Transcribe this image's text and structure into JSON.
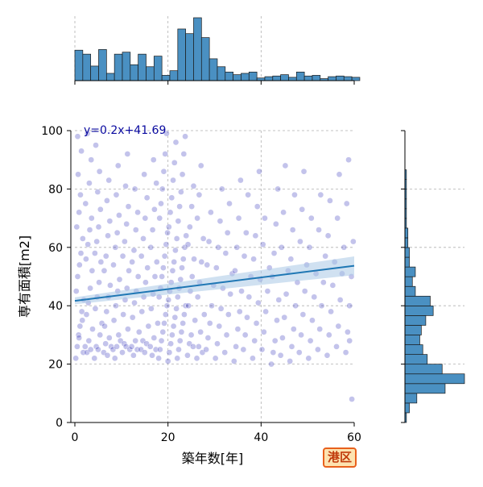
{
  "chart_data": {
    "type": "scatter",
    "xlabel": "築年数[年]",
    "ylabel": "専有面積[m2]",
    "xlim": [
      0,
      60
    ],
    "ylim": [
      0,
      100
    ],
    "x_ticks": [
      "0",
      "20",
      "40",
      "60"
    ],
    "y_ticks": [
      "0",
      "20",
      "40",
      "60",
      "80",
      "100"
    ],
    "grid": true,
    "regression": {
      "label": "y=0.2x+41.69",
      "slope": 0.2,
      "intercept": 41.69,
      "x_range": [
        0,
        60
      ]
    },
    "badge": "港区",
    "colors": {
      "points": "#2727b8",
      "line": "#1f77b4",
      "band": "#a9c8e6",
      "hist": "#4a90c2"
    },
    "top_histogram": {
      "bin_width": 1.7,
      "start": 0,
      "counts": [
        46,
        40,
        22,
        47,
        11,
        40,
        43,
        24,
        40,
        21,
        37,
        8,
        15,
        78,
        71,
        95,
        65,
        33,
        21,
        13,
        9,
        11,
        13,
        4,
        6,
        7,
        9,
        5,
        13,
        7,
        8,
        3,
        6,
        7,
        6,
        5
      ]
    },
    "right_histogram": {
      "bin_width": 3.33,
      "start": 0,
      "counts": [
        1,
        3,
        8,
        27,
        40,
        25,
        15,
        12,
        10,
        11,
        14,
        19,
        17,
        7,
        5,
        7,
        3,
        3,
        2,
        2,
        1,
        1,
        1,
        1,
        1,
        1
      ]
    },
    "points": [
      [
        0.2,
        22
      ],
      [
        0.5,
        26
      ],
      [
        0.8,
        30
      ],
      [
        1.1,
        33
      ],
      [
        1.5,
        38
      ],
      [
        1.9,
        42
      ],
      [
        0.3,
        45
      ],
      [
        0.6,
        50
      ],
      [
        1.0,
        54
      ],
      [
        1.3,
        58
      ],
      [
        1.7,
        63
      ],
      [
        0.4,
        67
      ],
      [
        0.9,
        72
      ],
      [
        1.2,
        78
      ],
      [
        0.7,
        85
      ],
      [
        1.4,
        93
      ],
      [
        0.6,
        98
      ],
      [
        1.8,
        24
      ],
      [
        0.9,
        29
      ],
      [
        1.6,
        35
      ],
      [
        2.2,
        26
      ],
      [
        2.6,
        24
      ],
      [
        3.0,
        28
      ],
      [
        3.4,
        25
      ],
      [
        3.8,
        32
      ],
      [
        2.5,
        37
      ],
      [
        2.9,
        41
      ],
      [
        3.3,
        46
      ],
      [
        3.7,
        52
      ],
      [
        2.4,
        56
      ],
      [
        2.8,
        61
      ],
      [
        3.2,
        66
      ],
      [
        3.6,
        70
      ],
      [
        2.3,
        75
      ],
      [
        3.1,
        82
      ],
      [
        3.5,
        90
      ],
      [
        2.7,
        99
      ],
      [
        4.2,
        22
      ],
      [
        4.6,
        26
      ],
      [
        5.0,
        25
      ],
      [
        5.4,
        30
      ],
      [
        5.8,
        34
      ],
      [
        4.4,
        39
      ],
      [
        4.8,
        43
      ],
      [
        5.2,
        48
      ],
      [
        5.6,
        55
      ],
      [
        4.3,
        58
      ],
      [
        4.7,
        62
      ],
      [
        5.1,
        67
      ],
      [
        5.5,
        73
      ],
      [
        4.9,
        79
      ],
      [
        5.3,
        86
      ],
      [
        4.5,
        95
      ],
      [
        6.2,
        24
      ],
      [
        6.6,
        27
      ],
      [
        7.0,
        23
      ],
      [
        7.4,
        29
      ],
      [
        7.8,
        26
      ],
      [
        6.4,
        33
      ],
      [
        6.8,
        38
      ],
      [
        7.2,
        43
      ],
      [
        7.6,
        47
      ],
      [
        6.3,
        52
      ],
      [
        6.7,
        57
      ],
      [
        7.1,
        64
      ],
      [
        7.5,
        69
      ],
      [
        6.9,
        76
      ],
      [
        7.3,
        83
      ],
      [
        8.2,
        25
      ],
      [
        8.6,
        22
      ],
      [
        9.0,
        26
      ],
      [
        9.4,
        30
      ],
      [
        9.8,
        28
      ],
      [
        8.4,
        35
      ],
      [
        8.8,
        40
      ],
      [
        9.2,
        45
      ],
      [
        9.6,
        49
      ],
      [
        8.3,
        54
      ],
      [
        8.7,
        60
      ],
      [
        9.1,
        65
      ],
      [
        9.5,
        71
      ],
      [
        8.9,
        78
      ],
      [
        9.3,
        88
      ],
      [
        10.2,
        24
      ],
      [
        10.6,
        27
      ],
      [
        11.0,
        26
      ],
      [
        11.4,
        32
      ],
      [
        11.8,
        25
      ],
      [
        10.4,
        37
      ],
      [
        10.8,
        42
      ],
      [
        11.2,
        46
      ],
      [
        11.6,
        52
      ],
      [
        10.3,
        57
      ],
      [
        10.7,
        62
      ],
      [
        11.1,
        68
      ],
      [
        11.5,
        74
      ],
      [
        10.9,
        81
      ],
      [
        11.3,
        92
      ],
      [
        12.2,
        26
      ],
      [
        12.6,
        23
      ],
      [
        13.0,
        28
      ],
      [
        13.4,
        25
      ],
      [
        13.8,
        31
      ],
      [
        12.4,
        36
      ],
      [
        12.8,
        41
      ],
      [
        13.2,
        45
      ],
      [
        13.6,
        50
      ],
      [
        12.3,
        55
      ],
      [
        12.7,
        59
      ],
      [
        13.1,
        66
      ],
      [
        13.5,
        72
      ],
      [
        12.9,
        80
      ],
      [
        14.2,
        25
      ],
      [
        14.6,
        28
      ],
      [
        15.0,
        24
      ],
      [
        15.4,
        27
      ],
      [
        15.8,
        33
      ],
      [
        14.4,
        38
      ],
      [
        14.8,
        43
      ],
      [
        15.2,
        48
      ],
      [
        15.6,
        53
      ],
      [
        14.3,
        57
      ],
      [
        14.7,
        63
      ],
      [
        15.1,
        70
      ],
      [
        15.5,
        77
      ],
      [
        14.9,
        85
      ],
      [
        16.2,
        26
      ],
      [
        16.6,
        23
      ],
      [
        17.0,
        29
      ],
      [
        17.4,
        25
      ],
      [
        17.8,
        34
      ],
      [
        16.4,
        39
      ],
      [
        16.8,
        44
      ],
      [
        17.2,
        50
      ],
      [
        17.6,
        55
      ],
      [
        16.3,
        60
      ],
      [
        16.7,
        66
      ],
      [
        17.1,
        73
      ],
      [
        17.5,
        82
      ],
      [
        16.9,
        90
      ],
      [
        18.0,
        22
      ],
      [
        18.3,
        25
      ],
      [
        18.6,
        28
      ],
      [
        18.9,
        31
      ],
      [
        19.2,
        34
      ],
      [
        19.5,
        37
      ],
      [
        19.8,
        40
      ],
      [
        18.1,
        43
      ],
      [
        18.4,
        46
      ],
      [
        18.7,
        50
      ],
      [
        19.0,
        53
      ],
      [
        19.3,
        57
      ],
      [
        19.6,
        61
      ],
      [
        19.9,
        65
      ],
      [
        18.2,
        70
      ],
      [
        18.5,
        75
      ],
      [
        18.8,
        80
      ],
      [
        19.1,
        86
      ],
      [
        19.4,
        92
      ],
      [
        19.7,
        99
      ],
      [
        20.0,
        21
      ],
      [
        20.3,
        24
      ],
      [
        20.6,
        27
      ],
      [
        20.9,
        30
      ],
      [
        21.2,
        33
      ],
      [
        21.5,
        36
      ],
      [
        21.8,
        39
      ],
      [
        20.1,
        42
      ],
      [
        20.4,
        45
      ],
      [
        20.7,
        48
      ],
      [
        21.0,
        52
      ],
      [
        21.3,
        55
      ],
      [
        21.6,
        59
      ],
      [
        21.9,
        63
      ],
      [
        20.2,
        67
      ],
      [
        20.5,
        72
      ],
      [
        20.8,
        77
      ],
      [
        21.1,
        83
      ],
      [
        21.4,
        89
      ],
      [
        21.7,
        96
      ],
      [
        22.0,
        22
      ],
      [
        22.3,
        25
      ],
      [
        22.6,
        28
      ],
      [
        22.9,
        31
      ],
      [
        23.2,
        34
      ],
      [
        23.5,
        37
      ],
      [
        23.8,
        40
      ],
      [
        22.1,
        43
      ],
      [
        22.4,
        46
      ],
      [
        22.7,
        49
      ],
      [
        23.0,
        53
      ],
      [
        23.3,
        56
      ],
      [
        23.6,
        60
      ],
      [
        23.9,
        64
      ],
      [
        22.2,
        69
      ],
      [
        22.5,
        74
      ],
      [
        22.8,
        79
      ],
      [
        23.1,
        85
      ],
      [
        23.4,
        92
      ],
      [
        23.7,
        98
      ],
      [
        24.2,
        23
      ],
      [
        24.6,
        27
      ],
      [
        25.0,
        30
      ],
      [
        25.4,
        26
      ],
      [
        25.8,
        35
      ],
      [
        24.4,
        40
      ],
      [
        24.8,
        45
      ],
      [
        25.2,
        50
      ],
      [
        25.6,
        56
      ],
      [
        24.3,
        61
      ],
      [
        24.7,
        67
      ],
      [
        25.1,
        74
      ],
      [
        25.5,
        81
      ],
      [
        26.2,
        22
      ],
      [
        26.6,
        26
      ],
      [
        27.0,
        31
      ],
      [
        27.4,
        24
      ],
      [
        27.8,
        37
      ],
      [
        26.4,
        43
      ],
      [
        26.8,
        48
      ],
      [
        27.2,
        55
      ],
      [
        27.6,
        63
      ],
      [
        26.3,
        70
      ],
      [
        26.7,
        78
      ],
      [
        27.1,
        88
      ],
      [
        28.2,
        25
      ],
      [
        28.6,
        29
      ],
      [
        29.0,
        34
      ],
      [
        29.4,
        40
      ],
      [
        29.8,
        47
      ],
      [
        28.4,
        54
      ],
      [
        28.8,
        62
      ],
      [
        29.2,
        72
      ],
      [
        30.2,
        22
      ],
      [
        30.6,
        27
      ],
      [
        31.0,
        33
      ],
      [
        31.4,
        39
      ],
      [
        31.8,
        46
      ],
      [
        30.4,
        53
      ],
      [
        30.8,
        60
      ],
      [
        31.2,
        69
      ],
      [
        31.6,
        80
      ],
      [
        32.2,
        24
      ],
      [
        32.6,
        30
      ],
      [
        33.0,
        37
      ],
      [
        33.4,
        44
      ],
      [
        33.8,
        51
      ],
      [
        32.4,
        58
      ],
      [
        32.8,
        65
      ],
      [
        33.2,
        75
      ],
      [
        34.2,
        21
      ],
      [
        34.6,
        26
      ],
      [
        35.0,
        32
      ],
      [
        35.4,
        38
      ],
      [
        35.8,
        45
      ],
      [
        34.4,
        52
      ],
      [
        34.8,
        60
      ],
      [
        35.2,
        70
      ],
      [
        35.6,
        83
      ],
      [
        36.2,
        25
      ],
      [
        36.6,
        30
      ],
      [
        37.0,
        36
      ],
      [
        37.4,
        43
      ],
      [
        37.8,
        50
      ],
      [
        36.4,
        57
      ],
      [
        36.8,
        65
      ],
      [
        37.2,
        78
      ],
      [
        38.2,
        22
      ],
      [
        38.6,
        28
      ],
      [
        39.0,
        34
      ],
      [
        39.4,
        41
      ],
      [
        39.8,
        49
      ],
      [
        38.4,
        56
      ],
      [
        38.8,
        64
      ],
      [
        39.2,
        74
      ],
      [
        39.6,
        86
      ],
      [
        40.2,
        25
      ],
      [
        40.6,
        31
      ],
      [
        41.0,
        38
      ],
      [
        41.4,
        45
      ],
      [
        41.8,
        53
      ],
      [
        40.4,
        61
      ],
      [
        40.8,
        70
      ],
      [
        42.2,
        20
      ],
      [
        42.6,
        24
      ],
      [
        43.0,
        28
      ],
      [
        43.4,
        35
      ],
      [
        43.8,
        42
      ],
      [
        42.4,
        50
      ],
      [
        42.8,
        58
      ],
      [
        43.2,
        68
      ],
      [
        43.6,
        80
      ],
      [
        44.2,
        23
      ],
      [
        44.6,
        29
      ],
      [
        45.0,
        36
      ],
      [
        45.4,
        44
      ],
      [
        45.8,
        52
      ],
      [
        44.4,
        60
      ],
      [
        44.8,
        72
      ],
      [
        45.2,
        88
      ],
      [
        46.2,
        21
      ],
      [
        46.6,
        26
      ],
      [
        47.0,
        32
      ],
      [
        47.4,
        40
      ],
      [
        47.8,
        48
      ],
      [
        46.4,
        56
      ],
      [
        46.8,
        66
      ],
      [
        47.2,
        78
      ],
      [
        48.2,
        24
      ],
      [
        48.6,
        30
      ],
      [
        49.0,
        37
      ],
      [
        49.4,
        45
      ],
      [
        49.8,
        54
      ],
      [
        48.4,
        62
      ],
      [
        48.8,
        73
      ],
      [
        49.2,
        86
      ],
      [
        50.2,
        22
      ],
      [
        50.6,
        28
      ],
      [
        51.0,
        35
      ],
      [
        51.4,
        43
      ],
      [
        51.8,
        51
      ],
      [
        50.4,
        60
      ],
      [
        50.8,
        70
      ],
      [
        52.2,
        25
      ],
      [
        52.6,
        32
      ],
      [
        53.0,
        40
      ],
      [
        53.4,
        48
      ],
      [
        53.8,
        57
      ],
      [
        52.4,
        66
      ],
      [
        52.8,
        78
      ],
      [
        54.2,
        23
      ],
      [
        54.6,
        30
      ],
      [
        55.0,
        38
      ],
      [
        55.4,
        47
      ],
      [
        55.8,
        55
      ],
      [
        54.4,
        64
      ],
      [
        54.8,
        76
      ],
      [
        56.2,
        26
      ],
      [
        56.6,
        33
      ],
      [
        57.0,
        42
      ],
      [
        57.4,
        51
      ],
      [
        57.8,
        60
      ],
      [
        56.4,
        70
      ],
      [
        56.8,
        85
      ],
      [
        58.2,
        24
      ],
      [
        58.6,
        31
      ],
      [
        59.0,
        40
      ],
      [
        59.4,
        50
      ],
      [
        59.8,
        62
      ],
      [
        58.4,
        75
      ],
      [
        58.8,
        90
      ],
      [
        59.5,
        8
      ],
      [
        59.0,
        28
      ]
    ]
  }
}
